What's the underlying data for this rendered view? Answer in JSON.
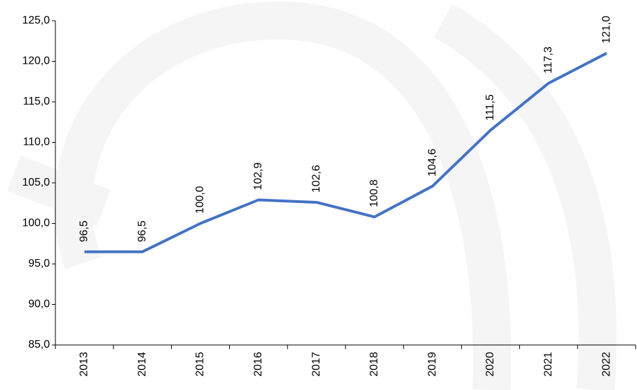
{
  "chart_data": {
    "type": "line",
    "categories": [
      "2013",
      "2014",
      "2015",
      "2016",
      "2017",
      "2018",
      "2019",
      "2020",
      "2021",
      "2022"
    ],
    "series": [
      {
        "name": null,
        "color": "#4472c4",
        "values": [
          96.5,
          96.5,
          100.0,
          102.9,
          102.6,
          100.8,
          104.6,
          111.5,
          117.3,
          121.0
        ],
        "value_labels": [
          "96,5",
          "96,5",
          "100,0",
          "102,9",
          "102,6",
          "100,8",
          "104,6",
          "111,5",
          "117,3",
          "121,0"
        ]
      }
    ],
    "ylim": [
      85,
      125
    ],
    "yticks": [
      {
        "value": 85,
        "label": "85,0"
      },
      {
        "value": 90,
        "label": "90,0"
      },
      {
        "value": 95,
        "label": "95,0"
      },
      {
        "value": 100,
        "label": "100,0"
      },
      {
        "value": 105,
        "label": "105,0"
      },
      {
        "value": 110,
        "label": "110,0"
      },
      {
        "value": 115,
        "label": "115,0"
      },
      {
        "value": 120,
        "label": "120,0"
      },
      {
        "value": 125,
        "label": "125,0"
      }
    ],
    "grid": false
  }
}
